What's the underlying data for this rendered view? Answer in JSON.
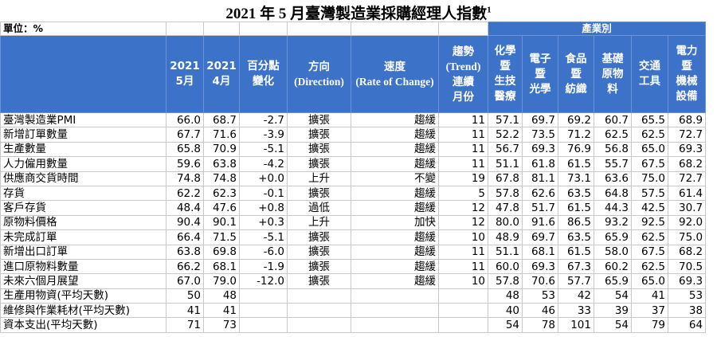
{
  "title": "2021 年 5 月臺灣製造業採購經理人指數",
  "title_note": "1",
  "unit": "單位：%",
  "group_header": "產業別",
  "table": {
    "columns": [
      "2021\n5月",
      "2021\n4月",
      "百分點\n變化",
      "方向\n(Direction)",
      "速度\n(Rate of Change)",
      "趨勢\n(Trend)\n連續\n月份",
      "化學\n暨\n生技\n醫療",
      "電子\n暨\n光學",
      "食品\n暨\n紡織",
      "基礎\n原物\n料",
      "交通\n工具",
      "電力\n暨\n機械\n設備"
    ],
    "rows": [
      [
        "臺灣製造業PMI",
        "66.0",
        "68.7",
        "-2.7",
        "擴張",
        "趨緩",
        "11",
        "57.1",
        "69.7",
        "69.2",
        "60.7",
        "65.5",
        "68.9"
      ],
      [
        "新增訂單數量",
        "67.7",
        "71.6",
        "-3.9",
        "擴張",
        "趨緩",
        "11",
        "52.2",
        "73.5",
        "71.2",
        "62.5",
        "62.5",
        "72.7"
      ],
      [
        "生產數量",
        "65.8",
        "70.9",
        "-5.1",
        "擴張",
        "趨緩",
        "11",
        "56.7",
        "69.3",
        "76.9",
        "56.8",
        "65.0",
        "69.3"
      ],
      [
        "人力僱用數量",
        "59.6",
        "63.8",
        "-4.2",
        "擴張",
        "趨緩",
        "11",
        "51.1",
        "61.8",
        "61.5",
        "55.7",
        "67.5",
        "68.2"
      ],
      [
        "供應商交貨時間",
        "74.8",
        "74.8",
        "+0.0",
        "上升",
        "不變",
        "19",
        "67.8",
        "81.1",
        "73.1",
        "63.6",
        "75.0",
        "72.7"
      ],
      [
        "存貨",
        "62.2",
        "62.3",
        "-0.1",
        "擴張",
        "趨緩",
        "5",
        "57.8",
        "62.6",
        "63.5",
        "64.8",
        "57.5",
        "61.4"
      ],
      [
        "客戶存貨",
        "48.4",
        "47.6",
        "+0.8",
        "過低",
        "趨緩",
        "12",
        "47.8",
        "51.7",
        "61.5",
        "44.3",
        "42.5",
        "30.7"
      ],
      [
        "原物料價格",
        "90.4",
        "90.1",
        "+0.3",
        "上升",
        "加快",
        "12",
        "80.0",
        "91.6",
        "86.5",
        "93.2",
        "92.5",
        "92.0"
      ],
      [
        "未完成訂單",
        "66.4",
        "71.5",
        "-5.1",
        "擴張",
        "趨緩",
        "10",
        "48.9",
        "69.7",
        "63.5",
        "65.9",
        "62.5",
        "75.0"
      ],
      [
        "新增出口訂單",
        "63.8",
        "69.8",
        "-6.0",
        "擴張",
        "趨緩",
        "11",
        "51.1",
        "68.1",
        "61.5",
        "58.0",
        "67.5",
        "68.2"
      ],
      [
        "進口原物料數量",
        "66.2",
        "68.1",
        "-1.9",
        "擴張",
        "趨緩",
        "11",
        "60.0",
        "69.3",
        "67.3",
        "60.2",
        "62.5",
        "70.5"
      ],
      [
        "未來六個月展望",
        "67.0",
        "79.0",
        "-12.0",
        "擴張",
        "趨緩",
        "10",
        "57.8",
        "70.6",
        "57.7",
        "65.9",
        "65.0",
        "69.3"
      ],
      [
        "生產用物資(平均天數)",
        "50",
        "48",
        null,
        null,
        null,
        null,
        "48",
        "53",
        "42",
        "54",
        "41",
        "53"
      ],
      [
        "維修與作業耗材(平均天數)",
        "41",
        "41",
        null,
        null,
        null,
        null,
        "40",
        "46",
        "33",
        "39",
        "37",
        "38"
      ],
      [
        "資本支出(平均天數)",
        "71",
        "73",
        null,
        null,
        null,
        null,
        "54",
        "78",
        "101",
        "54",
        "79",
        "64"
      ]
    ]
  }
}
